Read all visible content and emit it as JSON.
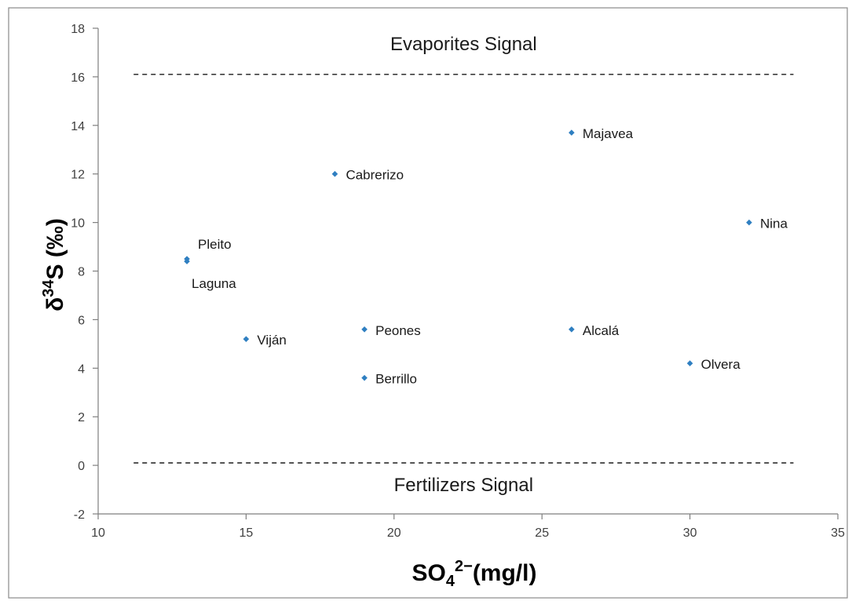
{
  "chart_data": {
    "type": "scatter",
    "title": "",
    "xlabel_parts": [
      "SO",
      "4",
      "2−",
      "(mg/l)"
    ],
    "ylabel_parts": [
      "δ",
      "34",
      "S (‰)"
    ],
    "xlim": [
      10,
      35
    ],
    "ylim": [
      -2,
      18
    ],
    "xticks": [
      10,
      15,
      20,
      25,
      30,
      35
    ],
    "yticks": [
      -2,
      0,
      2,
      4,
      6,
      8,
      10,
      12,
      14,
      16,
      18
    ],
    "grid": false,
    "points": [
      {
        "label": "Pleito",
        "x": 13,
        "y": 8.5
      },
      {
        "label": "Laguna",
        "x": 13,
        "y": 8.4
      },
      {
        "label": "Cabrerizo",
        "x": 18,
        "y": 12
      },
      {
        "label": "Majavea",
        "x": 26,
        "y": 13.7
      },
      {
        "label": "Nina",
        "x": 32,
        "y": 10
      },
      {
        "label": "Viján",
        "x": 15,
        "y": 5.2
      },
      {
        "label": "Peones",
        "x": 19,
        "y": 5.6
      },
      {
        "label": "Alcalá",
        "x": 26,
        "y": 5.6
      },
      {
        "label": "Olvera",
        "x": 30,
        "y": 4.2
      },
      {
        "label": "Berrillo",
        "x": 19,
        "y": 3.6
      }
    ],
    "reference_lines": [
      {
        "label": "Evaporites Signal",
        "y": 16.1
      },
      {
        "label": "Fertilizers Signal",
        "y": 0.1
      }
    ],
    "colors": {
      "point": "#2f7fc1",
      "reference_line": "#1a1a1a",
      "axis": "#7f7f7f"
    }
  }
}
